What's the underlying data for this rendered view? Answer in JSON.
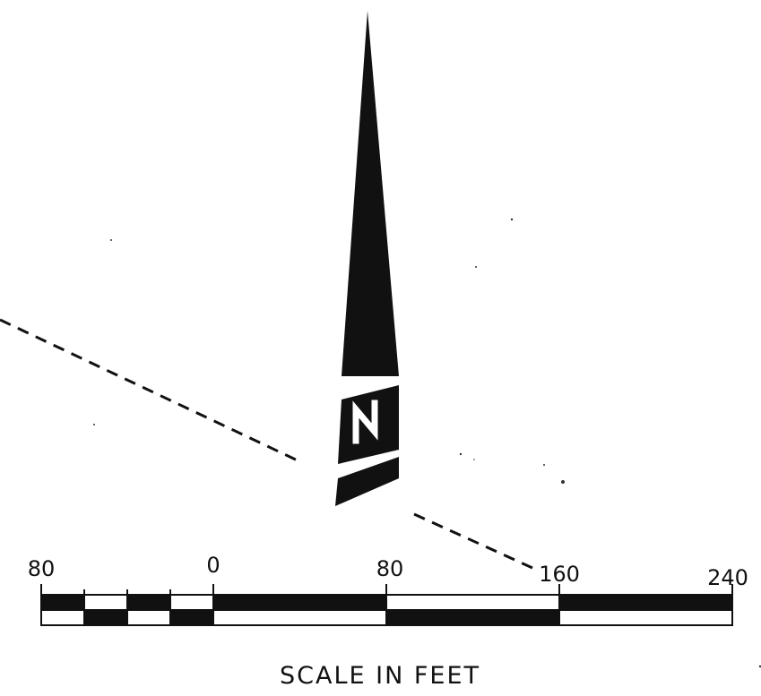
{
  "north_arrow": {
    "letter": "N",
    "icon": "north-arrow-icon"
  },
  "scale_bar": {
    "title": "SCALE IN FEET",
    "tick_labels": [
      "80",
      "0",
      "80",
      "160",
      "240"
    ]
  },
  "colors": {
    "ink": "#111111",
    "paper": "#ffffff"
  }
}
